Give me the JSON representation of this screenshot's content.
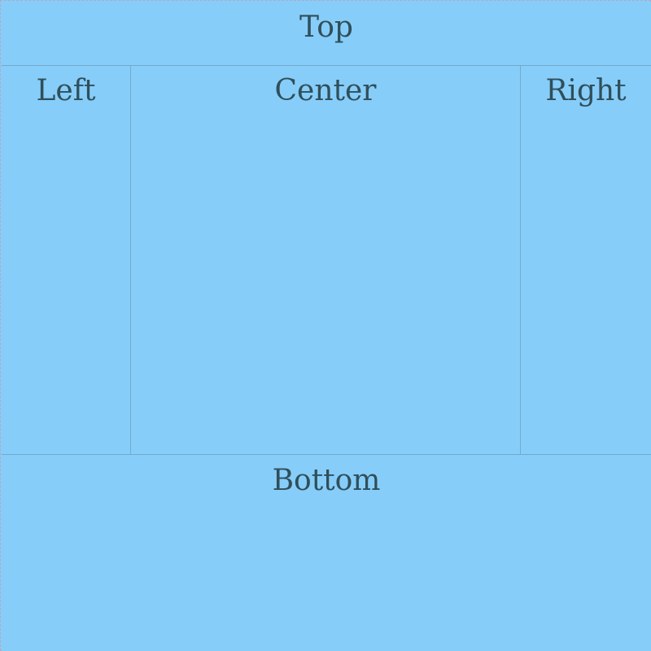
{
  "colors": {
    "region_fill": "#87cdf9",
    "region_border": "#73aacb",
    "label_text": "#2f4f5a",
    "outer_dash": "#b7a8c0"
  },
  "layout_regions": {
    "top": "Top",
    "left": "Left",
    "center": "Center",
    "right": "Right",
    "bottom": "Bottom"
  }
}
